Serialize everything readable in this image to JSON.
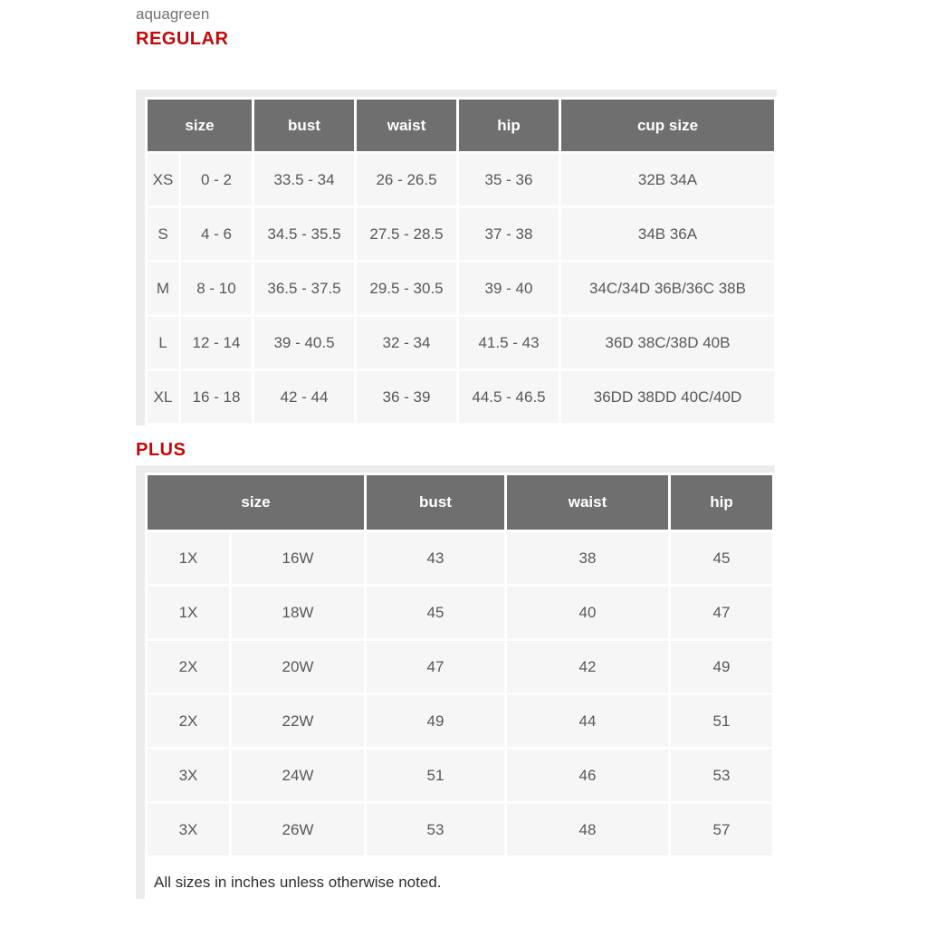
{
  "page": {
    "brand": "aquagreen",
    "note": "All sizes in inches unless otherwise noted."
  },
  "colors": {
    "accent_red": "#c40808",
    "header_bg": "#6f6f6f",
    "cell_bg": "#f6f6f6",
    "frame_gray": "#ececec",
    "text_gray": "#57585c"
  },
  "regular_table": {
    "title": "REGULAR",
    "headers": {
      "size": "size",
      "bust": "bust",
      "waist": "waist",
      "hip": "hip",
      "cup": "cup size"
    },
    "rows": [
      {
        "label": "XS",
        "size_range": "0 - 2",
        "bust": "33.5 - 34",
        "waist": "26 - 26.5",
        "hip": "35 - 36",
        "cup": "32B 34A"
      },
      {
        "label": "S",
        "size_range": "4 - 6",
        "bust": "34.5 - 35.5",
        "waist": "27.5 - 28.5",
        "hip": "37 - 38",
        "cup": "34B 36A"
      },
      {
        "label": "M",
        "size_range": "8 - 10",
        "bust": "36.5 - 37.5",
        "waist": "29.5 - 30.5",
        "hip": "39 - 40",
        "cup": "34C/34D 36B/36C 38B"
      },
      {
        "label": "L",
        "size_range": "12 - 14",
        "bust": "39 - 40.5",
        "waist": "32 - 34",
        "hip": "41.5 - 43",
        "cup": "36D 38C/38D 40B"
      },
      {
        "label": "XL",
        "size_range": "16 - 18",
        "bust": "42 - 44",
        "waist": "36 - 39",
        "hip": "44.5 - 46.5",
        "cup": "36DD 38DD 40C/40D"
      }
    ]
  },
  "plus_table": {
    "title": "PLUS",
    "headers": {
      "size": "size",
      "bust": "bust",
      "waist": "waist",
      "hip": "hip"
    },
    "rows": [
      {
        "label": "1X",
        "size_range": "16W",
        "bust": "43",
        "waist": "38",
        "hip": "45"
      },
      {
        "label": "1X",
        "size_range": "18W",
        "bust": "45",
        "waist": "40",
        "hip": "47"
      },
      {
        "label": "2X",
        "size_range": "20W",
        "bust": "47",
        "waist": "42",
        "hip": "49"
      },
      {
        "label": "2X",
        "size_range": "22W",
        "bust": "49",
        "waist": "44",
        "hip": "51"
      },
      {
        "label": "3X",
        "size_range": "24W",
        "bust": "51",
        "waist": "46",
        "hip": "53"
      },
      {
        "label": "3X",
        "size_range": "26W",
        "bust": "53",
        "waist": "48",
        "hip": "57"
      }
    ]
  }
}
